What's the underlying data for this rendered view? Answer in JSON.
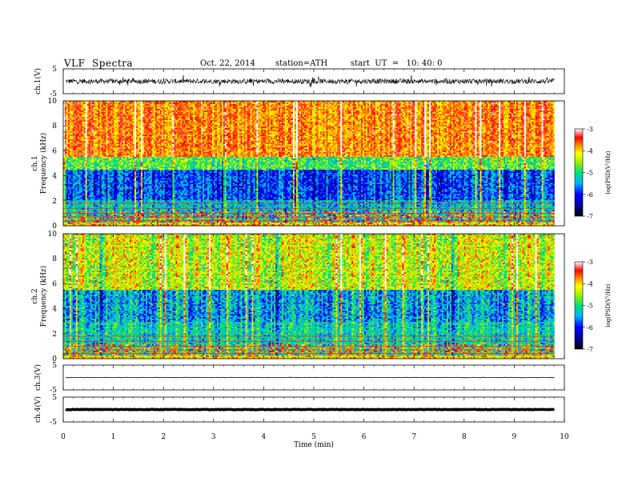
{
  "header": {
    "title": "VLF  Spectra",
    "date": "Oct. 22, 2014",
    "station": "station=ATH",
    "start": "start  UT  =   10: 40: 0"
  },
  "chart_data": [
    {
      "type": "line",
      "id": "ch1-waveform",
      "ylabel": "ch.1(V)",
      "ylim": [
        -5,
        5
      ],
      "yticks": [
        "5",
        "-5"
      ],
      "xlim": [
        0,
        9.8
      ],
      "description_values": {
        "mean": 0,
        "amplitude": 1.0
      }
    },
    {
      "type": "heatmap",
      "id": "ch1-spectrogram",
      "ylabel_top": "ch.1",
      "ylabel": "Frequency  (kHz)",
      "ylim": [
        0,
        10
      ],
      "yticks": [
        "0",
        "2",
        "4",
        "6",
        "8",
        "10"
      ],
      "colorbar": {
        "label": "log(PSD(V²/Hz)",
        "range": [
          -7,
          -3
        ],
        "ticks": [
          "-3",
          "-4",
          "-5",
          "-6",
          "-7"
        ]
      }
    },
    {
      "type": "heatmap",
      "id": "ch2-spectrogram",
      "ylabel_top": "ch.2",
      "ylabel": "Frequency  (kHz)",
      "ylim": [
        0,
        10
      ],
      "yticks": [
        "0",
        "2",
        "4",
        "6",
        "8",
        "10"
      ],
      "colorbar": {
        "label": "log(PSD(V²/Hz)",
        "range": [
          -7,
          -3
        ],
        "ticks": [
          "-3",
          "-4",
          "-5",
          "-6",
          "-7"
        ]
      }
    },
    {
      "type": "line",
      "id": "ch3-waveform",
      "ylabel": "ch.3(V)",
      "ylim": [
        -5,
        5
      ],
      "yticks": [
        "5",
        "-5"
      ],
      "description_values": {
        "level": 0,
        "amplitude": 0.1
      }
    },
    {
      "type": "line",
      "id": "ch4-waveform",
      "ylabel": "ch.4(V)",
      "ylim": [
        -5,
        5
      ],
      "yticks": [
        "5",
        "-5"
      ],
      "description_values": {
        "level": 0,
        "amplitude": 0.1
      }
    }
  ],
  "xaxis": {
    "label": "Time  (min)",
    "range": [
      0,
      10
    ],
    "ticks": [
      "0",
      "1",
      "2",
      "3",
      "4",
      "5",
      "6",
      "7",
      "8",
      "9",
      "10"
    ],
    "data_end": 9.8
  }
}
